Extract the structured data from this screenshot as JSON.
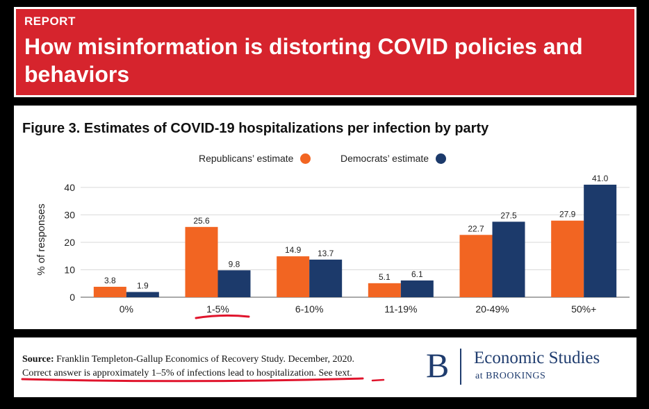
{
  "banner": {
    "tag": "REPORT",
    "headline": "How misinformation is distorting COVID policies and behaviors"
  },
  "figure": {
    "title": "Figure 3. Estimates of COVID-19 hospitalizations per infection by party"
  },
  "chart_data": {
    "type": "bar",
    "title": "Figure 3. Estimates of COVID-19 hospitalizations per infection by party",
    "xlabel": "",
    "ylabel": "% of responses",
    "ylim": [
      0,
      42
    ],
    "yticks": [
      0,
      10,
      20,
      30,
      40
    ],
    "grid": true,
    "legend_position": "top-center",
    "categories": [
      "0%",
      "1-5%",
      "6-10%",
      "11-19%",
      "20-49%",
      "50%+"
    ],
    "series": [
      {
        "name": "Republicans’ estimate",
        "color": "#f26522",
        "values": [
          3.8,
          25.6,
          14.9,
          5.1,
          22.7,
          27.9
        ]
      },
      {
        "name": "Democrats’ estimate",
        "color": "#1c3a6b",
        "values": [
          1.9,
          9.8,
          13.7,
          6.1,
          27.5,
          41.0
        ]
      }
    ]
  },
  "source": {
    "label": "Source:",
    "line1": "Franklin Templeton-Gallup Economics of Recovery Study. December, 2020.",
    "line2_main": "Correct answer is approximately 1–5% of infections lead to hospitalization.",
    "line2_tail": " See text."
  },
  "logo": {
    "letter": "B",
    "name": "Economic Studies",
    "sub": "at BROOKINGS"
  },
  "colors": {
    "banner_red": "#d6242d",
    "annotation_red": "#e0142c",
    "brand_navy": "#1f3c6e"
  }
}
